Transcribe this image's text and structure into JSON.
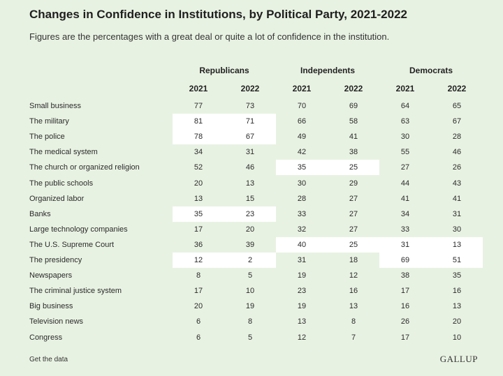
{
  "header": {
    "title": "Changes in Confidence in Institutions, by Political Party, 2021-2022",
    "subtitle": "Figures are the percentages with a great deal or quite a lot of confidence in the institution."
  },
  "chart_data": {
    "type": "table",
    "groups": [
      "Republicans",
      "Independents",
      "Democrats"
    ],
    "years": [
      "2021",
      "2022"
    ],
    "columns": [
      "Republicans 2021",
      "Republicans 2022",
      "Independents 2021",
      "Independents 2022",
      "Democrats 2021",
      "Democrats 2022"
    ],
    "rows": [
      {
        "label": "Small business",
        "values": [
          77,
          73,
          70,
          69,
          64,
          65
        ],
        "highlight": []
      },
      {
        "label": "The military",
        "values": [
          81,
          71,
          66,
          58,
          63,
          67
        ],
        "highlight": [
          0
        ]
      },
      {
        "label": "The police",
        "values": [
          78,
          67,
          49,
          41,
          30,
          28
        ],
        "highlight": [
          0
        ]
      },
      {
        "label": "The medical system",
        "values": [
          34,
          31,
          42,
          38,
          55,
          46
        ],
        "highlight": []
      },
      {
        "label": "The church or organized religion",
        "values": [
          52,
          46,
          35,
          25,
          27,
          26
        ],
        "highlight": [
          1
        ]
      },
      {
        "label": "The public schools",
        "values": [
          20,
          13,
          30,
          29,
          44,
          43
        ],
        "highlight": []
      },
      {
        "label": "Organized labor",
        "values": [
          13,
          15,
          28,
          27,
          41,
          41
        ],
        "highlight": []
      },
      {
        "label": "Banks",
        "values": [
          35,
          23,
          33,
          27,
          34,
          31
        ],
        "highlight": [
          0
        ]
      },
      {
        "label": "Large technology companies",
        "values": [
          17,
          20,
          32,
          27,
          33,
          30
        ],
        "highlight": []
      },
      {
        "label": "The U.S. Supreme Court",
        "values": [
          36,
          39,
          40,
          25,
          31,
          13
        ],
        "highlight": [
          1,
          2
        ]
      },
      {
        "label": "The presidency",
        "values": [
          12,
          2,
          31,
          18,
          69,
          51
        ],
        "highlight": [
          0,
          2
        ]
      },
      {
        "label": "Newspapers",
        "values": [
          8,
          5,
          19,
          12,
          38,
          35
        ],
        "highlight": []
      },
      {
        "label": "The criminal justice system",
        "values": [
          17,
          10,
          23,
          16,
          17,
          16
        ],
        "highlight": []
      },
      {
        "label": "Big business",
        "values": [
          20,
          19,
          19,
          13,
          16,
          13
        ],
        "highlight": []
      },
      {
        "label": "Television news",
        "values": [
          6,
          8,
          13,
          8,
          26,
          20
        ],
        "highlight": []
      },
      {
        "label": "Congress",
        "values": [
          6,
          5,
          12,
          7,
          17,
          10
        ],
        "highlight": []
      }
    ]
  },
  "footer": {
    "link_label": "Get the data",
    "logo_text": "GALLUP"
  },
  "colors": {
    "background": "#e8f2e2",
    "highlight": "#ffffff"
  }
}
